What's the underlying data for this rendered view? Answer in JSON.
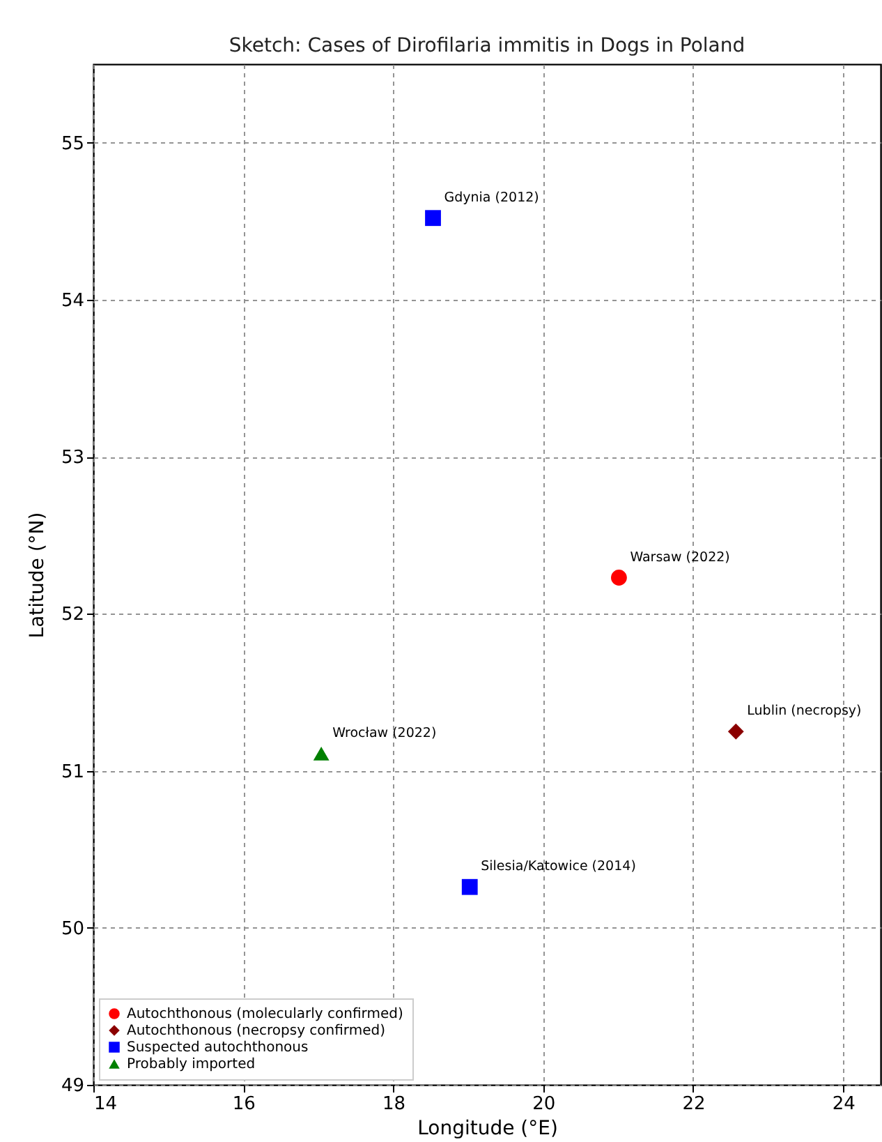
{
  "chart_data": {
    "type": "scatter",
    "title": "Sketch: Cases of Dirofilaria immitis in Dogs in Poland",
    "xlabel": "Longitude (°E)",
    "ylabel": "Latitude (°N)",
    "series": [
      {
        "name": "Autochthonous (molecularly confirmed)",
        "color": "#ff0000",
        "marker": "circle",
        "x": [
          21.01
        ],
        "values": [
          52.23
        ]
      },
      {
        "name": "Autochthonous (necropsy confirmed)",
        "color": "#8b0000",
        "marker": "diamond",
        "x": [
          22.57
        ],
        "values": [
          51.25
        ]
      },
      {
        "name": "Suspected autochthonous",
        "color": "#0000ff",
        "marker": "square",
        "x": [
          18.53,
          19.02
        ],
        "values": [
          54.52,
          50.26
        ]
      },
      {
        "name": "Probably imported",
        "color": "#008000",
        "marker": "triangle",
        "x": [
          17.04
        ],
        "values": [
          51.11
        ]
      }
    ],
    "annotations": [
      {
        "text": "Warsaw (2022)",
        "x": 21.01,
        "y": 52.23
      },
      {
        "text": "Lublin (necropsy)",
        "x": 22.57,
        "y": 51.25
      },
      {
        "text": "Gdynia (2012)",
        "x": 18.53,
        "y": 54.52
      },
      {
        "text": "Silesia/Katowice (2014)",
        "x": 19.02,
        "y": 50.26
      },
      {
        "text": "Wrocław (2022)",
        "x": 17.04,
        "y": 51.11
      }
    ],
    "xlim": [
      14,
      24.5
    ],
    "ylim": [
      49,
      55.5
    ],
    "xticks": [
      14,
      16,
      18,
      20,
      22,
      24
    ],
    "yticks": [
      49,
      50,
      51,
      52,
      53,
      54,
      55
    ],
    "grid": true,
    "legend": "bottom left"
  }
}
